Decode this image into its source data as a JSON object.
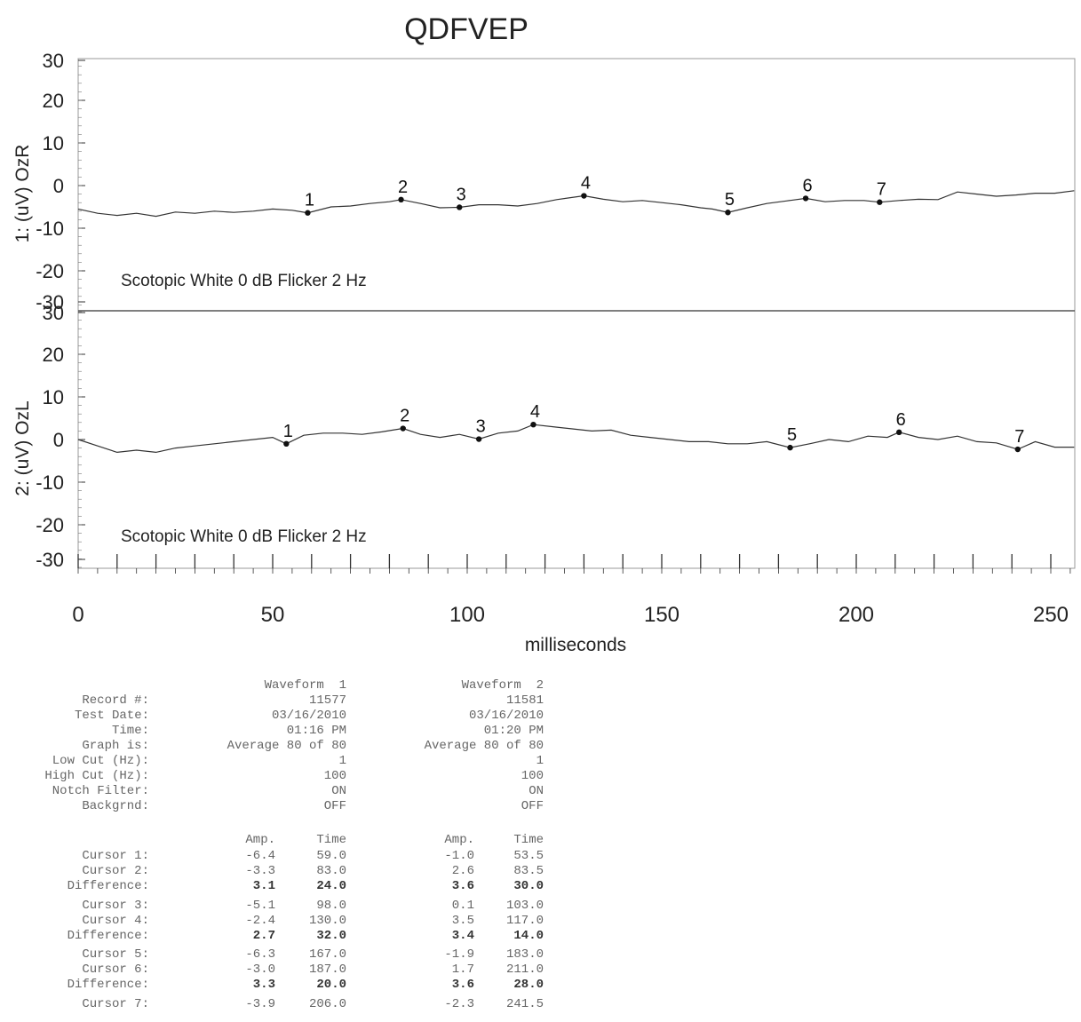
{
  "chart_data": {
    "type": "line",
    "title": "QDFVEP",
    "xlabel": "milliseconds",
    "xlim": [
      0,
      256
    ],
    "x_ticks": [
      0,
      50,
      100,
      150,
      200,
      250
    ],
    "panels": [
      {
        "channel_label": "1: (uV) OzR",
        "annotation": "Scotopic  White 0 dB Flicker 2 Hz",
        "ylim": [
          -30,
          30
        ],
        "y_ticks": [
          30,
          20,
          10,
          0,
          -10,
          -20,
          -30
        ],
        "series": {
          "x": [
            0,
            5,
            10,
            15,
            20,
            25,
            30,
            35,
            40,
            45,
            50,
            55,
            59,
            65,
            70,
            75,
            80,
            83,
            88,
            93,
            98,
            103,
            108,
            113,
            118,
            123,
            130,
            135,
            140,
            145,
            150,
            155,
            160,
            163,
            167,
            172,
            177,
            182,
            187,
            192,
            197,
            202,
            206,
            211,
            216,
            221,
            226,
            231,
            236,
            241,
            246,
            251,
            256
          ],
          "y": [
            -5.5,
            -6.5,
            -7,
            -6.5,
            -7.2,
            -6.2,
            -6.5,
            -6,
            -6.3,
            -6,
            -5.5,
            -5.8,
            -6.4,
            -5,
            -4.8,
            -4.2,
            -3.8,
            -3.3,
            -4.2,
            -5.2,
            -5.1,
            -4.5,
            -4.5,
            -4.8,
            -4.2,
            -3.3,
            -2.4,
            -3.2,
            -3.8,
            -3.5,
            -4,
            -4.5,
            -5.2,
            -5.5,
            -6.3,
            -5.2,
            -4.2,
            -3.6,
            -3.0,
            -3.8,
            -3.5,
            -3.5,
            -3.9,
            -3.5,
            -3.2,
            -3.3,
            -1.5,
            -2.0,
            -2.5,
            -2.2,
            -1.8,
            -1.8,
            -1.2
          ]
        },
        "cursors": [
          {
            "label": "1",
            "x": 59.0,
            "y": -6.4
          },
          {
            "label": "2",
            "x": 83.0,
            "y": -3.3
          },
          {
            "label": "3",
            "x": 98.0,
            "y": -5.1
          },
          {
            "label": "4",
            "x": 130.0,
            "y": -2.4
          },
          {
            "label": "5",
            "x": 167.0,
            "y": -6.3
          },
          {
            "label": "6",
            "x": 187.0,
            "y": -3.0
          },
          {
            "label": "7",
            "x": 206.0,
            "y": -3.9
          }
        ]
      },
      {
        "channel_label": "2: (uV) OzL",
        "annotation": "Scotopic  White 0 dB Flicker 2 Hz",
        "ylim": [
          -30,
          30
        ],
        "y_ticks": [
          30,
          20,
          10,
          0,
          -10,
          -20,
          -30
        ],
        "series": {
          "x": [
            0,
            5,
            10,
            15,
            20,
            25,
            30,
            35,
            40,
            45,
            50,
            53.5,
            58,
            63,
            68,
            73,
            78,
            83.5,
            88,
            93,
            98,
            103,
            108,
            113,
            117,
            122,
            127,
            132,
            137,
            142,
            147,
            152,
            157,
            162,
            167,
            172,
            177,
            183,
            188,
            193,
            198,
            203,
            208,
            211,
            216,
            221,
            226,
            231,
            236,
            241.5,
            246,
            251,
            256
          ],
          "y": [
            0,
            -1.5,
            -3,
            -2.5,
            -3,
            -2,
            -1.5,
            -1,
            -0.5,
            0,
            0.5,
            -1.0,
            1,
            1.5,
            1.5,
            1.2,
            1.8,
            2.6,
            1.2,
            0.5,
            1.2,
            0.1,
            1.5,
            2,
            3.5,
            3,
            2.5,
            2,
            2.2,
            1,
            0.5,
            0,
            -0.5,
            -0.5,
            -1,
            -1,
            -0.5,
            -1.9,
            -1,
            0,
            -0.5,
            0.8,
            0.5,
            1.7,
            0.5,
            0,
            0.8,
            -0.5,
            -0.8,
            -2.3,
            -0.5,
            -1.8,
            -1.8
          ]
        },
        "cursors": [
          {
            "label": "1",
            "x": 53.5,
            "y": -1.0
          },
          {
            "label": "2",
            "x": 83.5,
            "y": 2.6
          },
          {
            "label": "3",
            "x": 103.0,
            "y": 0.1
          },
          {
            "label": "4",
            "x": 117.0,
            "y": 3.5
          },
          {
            "label": "5",
            "x": 183.0,
            "y": -1.9
          },
          {
            "label": "6",
            "x": 211.0,
            "y": 1.7
          },
          {
            "label": "7",
            "x": 241.5,
            "y": -2.3
          }
        ]
      }
    ]
  },
  "report": {
    "headers": {
      "waveform1": "Waveform  1",
      "waveform2": "Waveform  2"
    },
    "info_rows": [
      {
        "label": "Record #:",
        "w1": "11577",
        "w2": "11581"
      },
      {
        "label": "Test Date:",
        "w1": "03/16/2010",
        "w2": "03/16/2010"
      },
      {
        "label": "Time:",
        "w1": "01:16 PM",
        "w2": "01:20 PM"
      },
      {
        "label": "Graph is:",
        "w1": "Average 80 of 80",
        "w2": "Average 80 of 80"
      },
      {
        "label": "Low Cut (Hz):",
        "w1": "1",
        "w2": "1"
      },
      {
        "label": "High Cut (Hz):",
        "w1": "100",
        "w2": "100"
      },
      {
        "label": "Notch Filter:",
        "w1": "ON",
        "w2": "ON"
      },
      {
        "label": "Backgrnd:",
        "w1": "OFF",
        "w2": "OFF"
      }
    ],
    "cursor_header": {
      "amp": "Amp.",
      "time": "Time"
    },
    "cursor_rows": [
      {
        "label": "Cursor 1:",
        "a1": "-6.4",
        "t1": "59.0",
        "a2": "-1.0",
        "t2": "53.5",
        "bold": false
      },
      {
        "label": "Cursor 2:",
        "a1": "-3.3",
        "t1": "83.0",
        "a2": "2.6",
        "t2": "83.5",
        "bold": false
      },
      {
        "label": "Difference:",
        "a1": "3.1",
        "t1": "24.0",
        "a2": "3.6",
        "t2": "30.0",
        "bold": true
      },
      {
        "label": "Cursor 3:",
        "a1": "-5.1",
        "t1": "98.0",
        "a2": "0.1",
        "t2": "103.0",
        "bold": false
      },
      {
        "label": "Cursor 4:",
        "a1": "-2.4",
        "t1": "130.0",
        "a2": "3.5",
        "t2": "117.0",
        "bold": false
      },
      {
        "label": "Difference:",
        "a1": "2.7",
        "t1": "32.0",
        "a2": "3.4",
        "t2": "14.0",
        "bold": true
      },
      {
        "label": "Cursor 5:",
        "a1": "-6.3",
        "t1": "167.0",
        "a2": "-1.9",
        "t2": "183.0",
        "bold": false
      },
      {
        "label": "Cursor 6:",
        "a1": "-3.0",
        "t1": "187.0",
        "a2": "1.7",
        "t2": "211.0",
        "bold": false
      },
      {
        "label": "Difference:",
        "a1": "3.3",
        "t1": "20.0",
        "a2": "3.6",
        "t2": "28.0",
        "bold": true
      },
      {
        "label": "Cursor 7:",
        "a1": "-3.9",
        "t1": "206.0",
        "a2": "-2.3",
        "t2": "241.5",
        "bold": false
      }
    ]
  }
}
